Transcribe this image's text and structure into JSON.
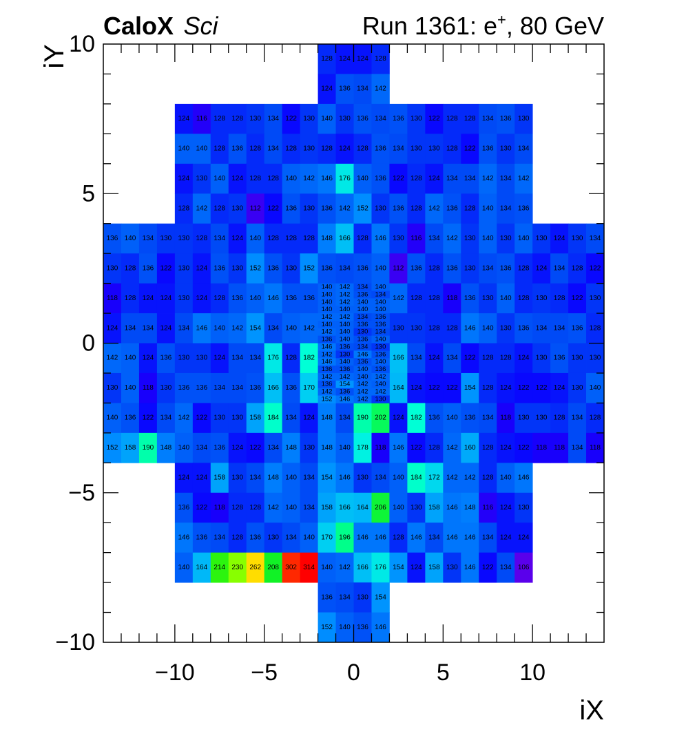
{
  "chart_data": {
    "type": "heatmap",
    "title": {
      "main": "CaloX",
      "sub": "Sci",
      "run_prefix": "Run 1361: e",
      "run_sup": "+",
      "run_suffix": ", 80 GeV"
    },
    "xlabel": "iX",
    "ylabel": "iY",
    "xlim": [
      -14,
      14
    ],
    "ylim": [
      -10,
      10
    ],
    "xticks": [
      -10,
      -5,
      0,
      5,
      10
    ],
    "yticks": [
      -10,
      -5,
      0,
      5,
      10
    ],
    "tick_labels_x": [
      "−10",
      "−5",
      "0",
      "5",
      "10"
    ],
    "tick_labels_y": [
      "−10",
      "−5",
      "0",
      "5",
      "10"
    ],
    "color_range": [
      106,
      314
    ],
    "colormap": "rainbow",
    "grid": false,
    "legend": "none",
    "coarse_rows": [
      {
        "y": 9,
        "x0": -2,
        "values": [
          128,
          124,
          124,
          128
        ]
      },
      {
        "y": 8,
        "x0": -2,
        "values": [
          124,
          136,
          134,
          142
        ]
      },
      {
        "y": 7,
        "x0": -10,
        "values": [
          124,
          116,
          128,
          128,
          130,
          134,
          122,
          130,
          140,
          130,
          136,
          134,
          136,
          130,
          122,
          128,
          128,
          134,
          136,
          130
        ]
      },
      {
        "y": 6,
        "x0": -10,
        "values": [
          140,
          140,
          128,
          136,
          128,
          134,
          128,
          130,
          128,
          124,
          128,
          136,
          134,
          130,
          130,
          128,
          122,
          136,
          130,
          134
        ]
      },
      {
        "y": 5,
        "x0": -10,
        "values": [
          124,
          130,
          140,
          124,
          128,
          128,
          140,
          142,
          146,
          176,
          140,
          136,
          122,
          128,
          124,
          134,
          134,
          142,
          134,
          142
        ]
      },
      {
        "y": 4,
        "x0": -10,
        "values": [
          128,
          142,
          128,
          130,
          112,
          122,
          136,
          130,
          136,
          142,
          152,
          130,
          136,
          128,
          142,
          136,
          128,
          140,
          134,
          136
        ]
      },
      {
        "y": 3,
        "x0": -14,
        "values": [
          136,
          140,
          134,
          130,
          130,
          128,
          134,
          124,
          140,
          128,
          128,
          128,
          148,
          166,
          128,
          146,
          130,
          116,
          134,
          142,
          130,
          140,
          130,
          140,
          130,
          124,
          130,
          134
        ]
      },
      {
        "y": 2,
        "x0": -14,
        "values": [
          130,
          128,
          136,
          122,
          130,
          124,
          136,
          130,
          152,
          136,
          130,
          152,
          136,
          134,
          136,
          140,
          112,
          136,
          128,
          136,
          130,
          134,
          136,
          128,
          124,
          134,
          128,
          122
        ]
      },
      {
        "y": 1,
        "x0": -14,
        "values": [
          118,
          128,
          124,
          124,
          130,
          124,
          128,
          136,
          140,
          146,
          136,
          136,
          null,
          null,
          null,
          null,
          142,
          128,
          128,
          118,
          136,
          130,
          140,
          128,
          130,
          128,
          122,
          130
        ]
      },
      {
        "y": 0,
        "x0": -14,
        "values": [
          124,
          134,
          134,
          124,
          134,
          146,
          140,
          142,
          154,
          134,
          140,
          142,
          null,
          null,
          null,
          null,
          130,
          130,
          128,
          128,
          146,
          140,
          130,
          136,
          134,
          134,
          136,
          128
        ]
      },
      {
        "y": -1,
        "x0": -14,
        "values": [
          142,
          140,
          124,
          136,
          130,
          130,
          124,
          134,
          134,
          176,
          128,
          182,
          null,
          null,
          null,
          null,
          166,
          134,
          124,
          134,
          122,
          128,
          128,
          124,
          130,
          136,
          130,
          130
        ]
      },
      {
        "y": -2,
        "x0": -14,
        "values": [
          130,
          140,
          118,
          130,
          136,
          136,
          134,
          134,
          136,
          166,
          136,
          170,
          null,
          null,
          null,
          null,
          164,
          124,
          122,
          122,
          154,
          128,
          124,
          122,
          122,
          124,
          130,
          140
        ]
      },
      {
        "y": -3,
        "x0": -14,
        "values": [
          140,
          136,
          122,
          134,
          142,
          122,
          130,
          130,
          158,
          184,
          134,
          124,
          148,
          134,
          190,
          202,
          124,
          182,
          136,
          140,
          136,
          134,
          118,
          130,
          130,
          128,
          134,
          128
        ]
      },
      {
        "y": -4,
        "x0": -14,
        "values": [
          152,
          158,
          190,
          148,
          140,
          134,
          136,
          124,
          122,
          134,
          148,
          130,
          148,
          140,
          178,
          118,
          146,
          122,
          128,
          142,
          160,
          128,
          124,
          122,
          118,
          118,
          134,
          118
        ]
      },
      {
        "y": -5,
        "x0": -10,
        "values": [
          124,
          124,
          158,
          130,
          134,
          148,
          140,
          134,
          154,
          146,
          130,
          134,
          140,
          184,
          172,
          142,
          142,
          128,
          140,
          146
        ]
      },
      {
        "y": -6,
        "x0": -10,
        "values": [
          136,
          122,
          118,
          128,
          128,
          142,
          140,
          134,
          158,
          166,
          164,
          206,
          140,
          130,
          158,
          146,
          148,
          116,
          124,
          130
        ]
      },
      {
        "y": -7,
        "x0": -10,
        "values": [
          146,
          136,
          134,
          128,
          136,
          130,
          134,
          140,
          170,
          196,
          146,
          146,
          128,
          146,
          134,
          146,
          146,
          134,
          124,
          124
        ]
      },
      {
        "y": -8,
        "x0": -10,
        "values": [
          140,
          164,
          214,
          230,
          262,
          208,
          302,
          314,
          140,
          142,
          166,
          176,
          154,
          124,
          158,
          130,
          146,
          122,
          134,
          106
        ]
      },
      {
        "y": -9,
        "x0": -2,
        "values": [
          136,
          134,
          130,
          154
        ]
      },
      {
        "y": -10,
        "x0": -2,
        "values": [
          152,
          140,
          136,
          146
        ]
      }
    ],
    "fine_region": {
      "x0": -2,
      "x_cell": 1,
      "y_top": 2,
      "y_cell": 0.25,
      "rows": [
        [
          140,
          142,
          134,
          140
        ],
        [
          140,
          142,
          136,
          134
        ],
        [
          140,
          142,
          140,
          140
        ],
        [
          140,
          140,
          140,
          140
        ],
        [
          142,
          142,
          134,
          136
        ],
        [
          140,
          140,
          136,
          136
        ],
        [
          142,
          140,
          130,
          134
        ],
        [
          136,
          140,
          136,
          140
        ],
        [
          146,
          136,
          134,
          130
        ],
        [
          142,
          130,
          146,
          136
        ],
        [
          146,
          140,
          136,
          140
        ],
        [
          136,
          136,
          140,
          136
        ],
        [
          142,
          142,
          140,
          142
        ],
        [
          136,
          154,
          142,
          140
        ],
        [
          142,
          136,
          142,
          142
        ],
        [
          152,
          146,
          142,
          130
        ]
      ]
    }
  }
}
